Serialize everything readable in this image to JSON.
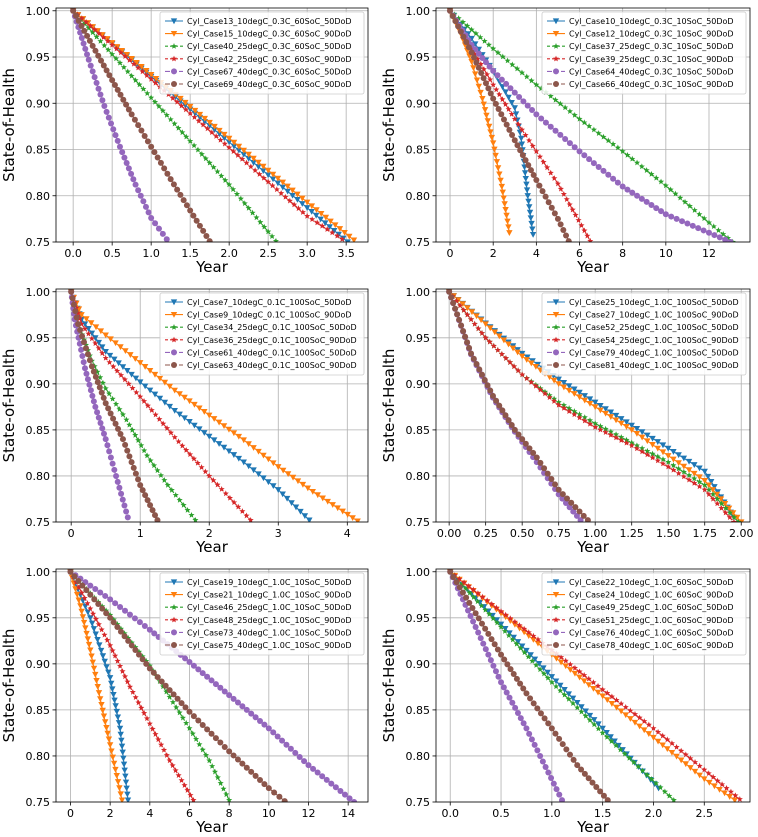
{
  "chart_data": [
    {
      "type": "line",
      "xlabel": "Year",
      "ylabel": "State-of-Health",
      "xlim": [
        -0.22,
        3.78
      ],
      "ylim": [
        0.75,
        1.003
      ],
      "xticks": [
        "0.0",
        "0.5",
        "1.0",
        "1.5",
        "2.0",
        "2.5",
        "3.0",
        "3.5"
      ],
      "yticks": [
        "0.75",
        "0.80",
        "0.85",
        "0.90",
        "0.95",
        "1.00"
      ],
      "grid": true,
      "legend_position": "top-right",
      "series": [
        {
          "name": "Cyl_Case13_10degC_0.3C_60SoC_50DoD",
          "color": "#1f77b4",
          "marker": "triangle-down",
          "x": [
            0,
            0.5,
            1.0,
            1.5,
            2.0,
            2.5,
            3.0,
            3.52
          ],
          "y": [
            1.0,
            0.9645,
            0.929,
            0.8935,
            0.858,
            0.8225,
            0.787,
            0.75
          ]
        },
        {
          "name": "Cyl_Case15_10degC_0.3C_60SoC_90DoD",
          "color": "#ff7f0e",
          "marker": "triangle-down",
          "x": [
            0,
            0.5,
            1.0,
            1.5,
            2.0,
            2.5,
            3.0,
            3.6
          ],
          "y": [
            1.0,
            0.9655,
            0.931,
            0.8965,
            0.862,
            0.8275,
            0.793,
            0.752
          ]
        },
        {
          "name": "Cyl_Case40_25degC_0.3C_60SoC_50DoD",
          "color": "#2ca02c",
          "marker": "star",
          "x": [
            0,
            0.5,
            1.0,
            1.5,
            2.0,
            2.6
          ],
          "y": [
            1.0,
            0.953,
            0.906,
            0.859,
            0.812,
            0.751
          ]
        },
        {
          "name": "Cyl_Case42_25degC_0.3C_60SoC_90DoD",
          "color": "#d62728",
          "marker": "star",
          "x": [
            0,
            0.5,
            1.0,
            1.5,
            2.0,
            2.5,
            3.0,
            3.45
          ],
          "y": [
            1.0,
            0.963,
            0.926,
            0.889,
            0.852,
            0.815,
            0.778,
            0.753
          ]
        },
        {
          "name": "Cyl_Case67_40degC_0.3C_60SoC_50DoD",
          "color": "#9467bd",
          "marker": "circle",
          "x": [
            0,
            0.2,
            0.4,
            0.6,
            0.8,
            1.0,
            1.2
          ],
          "y": [
            1.0,
            0.947,
            0.897,
            0.853,
            0.812,
            0.776,
            0.753
          ]
        },
        {
          "name": "Cyl_Case69_40degC_0.3C_60SoC_90DoD",
          "color": "#8c564b",
          "marker": "circle",
          "x": [
            0,
            0.25,
            0.5,
            0.75,
            1.0,
            1.25,
            1.5,
            1.75
          ],
          "y": [
            1.0,
            0.962,
            0.925,
            0.888,
            0.853,
            0.818,
            0.784,
            0.751
          ]
        }
      ]
    },
    {
      "type": "line",
      "xlabel": "Year",
      "ylabel": "State-of-Health",
      "xlim": [
        -0.65,
        13.9
      ],
      "ylim": [
        0.75,
        1.003
      ],
      "xticks": [
        "0",
        "2",
        "4",
        "6",
        "8",
        "10",
        "12"
      ],
      "yticks": [
        "0.75",
        "0.80",
        "0.85",
        "0.90",
        "0.95",
        "1.00"
      ],
      "grid": true,
      "legend_position": "top-right",
      "series": [
        {
          "name": "Cyl_Case10_10degC_0.3C_10SoC_50DoD",
          "color": "#1f77b4",
          "marker": "triangle-down",
          "x": [
            0,
            1,
            2,
            3,
            3.3,
            3.6,
            3.85
          ],
          "y": [
            1.0,
            0.97,
            0.935,
            0.895,
            0.862,
            0.8,
            0.758
          ]
        },
        {
          "name": "Cyl_Case12_10degC_0.3C_10SoC_90DoD",
          "color": "#ff7f0e",
          "marker": "triangle-down",
          "x": [
            0,
            0.5,
            1,
            1.5,
            2,
            2.4,
            2.75
          ],
          "y": [
            1.0,
            0.975,
            0.945,
            0.905,
            0.857,
            0.81,
            0.76
          ]
        },
        {
          "name": "Cyl_Case37_25degC_0.3C_10SoC_50DoD",
          "color": "#2ca02c",
          "marker": "star",
          "x": [
            0,
            2,
            4,
            6,
            8,
            10,
            12,
            13.1
          ],
          "y": [
            1.0,
            0.959,
            0.92,
            0.883,
            0.848,
            0.811,
            0.771,
            0.75
          ]
        },
        {
          "name": "Cyl_Case39_25degC_0.3C_10SoC_90DoD",
          "color": "#d62728",
          "marker": "star",
          "x": [
            0,
            1,
            2,
            3,
            4,
            5,
            6.5
          ],
          "y": [
            1.0,
            0.959,
            0.92,
            0.883,
            0.848,
            0.813,
            0.751
          ]
        },
        {
          "name": "Cyl_Case64_40degC_0.3C_10SoC_50DoD",
          "color": "#9467bd",
          "marker": "circle",
          "x": [
            0,
            1,
            2,
            4,
            6,
            8,
            10,
            12,
            13.0
          ],
          "y": [
            1.0,
            0.963,
            0.935,
            0.888,
            0.848,
            0.81,
            0.78,
            0.76,
            0.75
          ]
        },
        {
          "name": "Cyl_Case66_40degC_0.3C_10SoC_90DoD",
          "color": "#8c564b",
          "marker": "circle",
          "x": [
            0,
            1,
            2,
            3,
            4,
            5,
            5.5
          ],
          "y": [
            1.0,
            0.955,
            0.905,
            0.86,
            0.817,
            0.775,
            0.751
          ]
        }
      ]
    },
    {
      "type": "line",
      "xlabel": "Year",
      "ylabel": "State-of-Health",
      "xlim": [
        -0.22,
        4.3
      ],
      "ylim": [
        0.75,
        1.003
      ],
      "xticks": [
        "0",
        "1",
        "2",
        "3",
        "4"
      ],
      "yticks": [
        "0.75",
        "0.80",
        "0.85",
        "0.90",
        "0.95",
        "1.00"
      ],
      "grid": true,
      "legend_position": "top-right",
      "series": [
        {
          "name": "Cyl_Case7_10degC_0.1C_100SoC_50DoD",
          "color": "#1f77b4",
          "marker": "triangle-down",
          "x": [
            0,
            0.15,
            0.5,
            1.0,
            1.5,
            2.0,
            2.5,
            3.0,
            3.45
          ],
          "y": [
            1.0,
            0.97,
            0.935,
            0.902,
            0.871,
            0.843,
            0.815,
            0.785,
            0.752
          ]
        },
        {
          "name": "Cyl_Case9_10degC_0.1C_100SoC_90DoD",
          "color": "#ff7f0e",
          "marker": "triangle-down",
          "x": [
            0,
            0.15,
            0.5,
            1.0,
            1.5,
            2.0,
            2.5,
            3.0,
            3.5,
            4.15
          ],
          "y": [
            1.0,
            0.975,
            0.953,
            0.923,
            0.893,
            0.866,
            0.839,
            0.81,
            0.783,
            0.751
          ]
        },
        {
          "name": "Cyl_Case34_25degC_0.1C_100SoC_50DoD",
          "color": "#2ca02c",
          "marker": "star",
          "x": [
            0,
            0.1,
            0.3,
            0.5,
            0.8,
            1.1,
            1.4,
            1.8
          ],
          "y": [
            1.0,
            0.965,
            0.925,
            0.895,
            0.861,
            0.822,
            0.79,
            0.752
          ]
        },
        {
          "name": "Cyl_Case36_25degC_0.1C_100SoC_90DoD",
          "color": "#d62728",
          "marker": "star",
          "x": [
            0,
            0.15,
            0.5,
            1.0,
            1.5,
            2.0,
            2.6
          ],
          "y": [
            1.0,
            0.965,
            0.928,
            0.886,
            0.842,
            0.8,
            0.752
          ]
        },
        {
          "name": "Cyl_Case61_40degC_0.1C_100SoC_50DoD",
          "color": "#9467bd",
          "marker": "circle",
          "x": [
            0,
            0.05,
            0.2,
            0.35,
            0.5,
            0.65,
            0.82
          ],
          "y": [
            1.0,
            0.97,
            0.917,
            0.875,
            0.84,
            0.8,
            0.755
          ]
        },
        {
          "name": "Cyl_Case63_40degC_0.1C_100SoC_90DoD",
          "color": "#8c564b",
          "marker": "circle",
          "x": [
            0,
            0.1,
            0.3,
            0.5,
            0.75,
            1.0,
            1.25
          ],
          "y": [
            1.0,
            0.965,
            0.919,
            0.879,
            0.84,
            0.79,
            0.752
          ]
        }
      ]
    },
    {
      "type": "line",
      "xlabel": "Year",
      "ylabel": "State-of-Health",
      "xlim": [
        -0.09,
        2.06
      ],
      "ylim": [
        0.75,
        1.003
      ],
      "xticks": [
        "0.00",
        "0.25",
        "0.50",
        "0.75",
        "1.00",
        "1.25",
        "1.50",
        "1.75",
        "2.00"
      ],
      "yticks": [
        "0.75",
        "0.80",
        "0.85",
        "0.90",
        "0.95",
        "1.00"
      ],
      "grid": true,
      "legend_position": "top-right",
      "series": [
        {
          "name": "Cyl_Case25_10degC_1.0C_100SoC_50DoD",
          "color": "#1f77b4",
          "marker": "triangle-down",
          "x": [
            0,
            0.25,
            0.5,
            0.75,
            1.0,
            1.25,
            1.5,
            1.75,
            1.95
          ],
          "y": [
            1.0,
            0.966,
            0.933,
            0.905,
            0.88,
            0.855,
            0.83,
            0.805,
            0.755
          ]
        },
        {
          "name": "Cyl_Case27_10degC_1.0C_100SoC_90DoD",
          "color": "#ff7f0e",
          "marker": "triangle-down",
          "x": [
            0,
            0.25,
            0.5,
            0.75,
            1.0,
            1.25,
            1.5,
            1.75,
            2.0
          ],
          "y": [
            1.0,
            0.965,
            0.93,
            0.9,
            0.875,
            0.85,
            0.822,
            0.795,
            0.75
          ]
        },
        {
          "name": "Cyl_Case52_25degC_1.0C_100SoC_50DoD",
          "color": "#2ca02c",
          "marker": "star",
          "x": [
            0,
            0.25,
            0.5,
            0.75,
            1.0,
            1.25,
            1.5,
            1.75,
            1.98
          ],
          "y": [
            1.0,
            0.95,
            0.91,
            0.88,
            0.857,
            0.836,
            0.815,
            0.79,
            0.75
          ]
        },
        {
          "name": "Cyl_Case54_25degC_1.0C_100SoC_90DoD",
          "color": "#d62728",
          "marker": "star",
          "x": [
            0,
            0.25,
            0.5,
            0.75,
            1.0,
            1.25,
            1.5,
            1.75,
            1.95
          ],
          "y": [
            1.0,
            0.95,
            0.91,
            0.877,
            0.853,
            0.833,
            0.81,
            0.785,
            0.75
          ]
        },
        {
          "name": "Cyl_Case79_40degC_1.0C_100SoC_50DoD",
          "color": "#9467bd",
          "marker": "circle",
          "x": [
            0,
            0.15,
            0.3,
            0.45,
            0.6,
            0.75,
            0.9
          ],
          "y": [
            1.0,
            0.932,
            0.885,
            0.848,
            0.815,
            0.78,
            0.752
          ]
        },
        {
          "name": "Cyl_Case81_40degC_1.0C_100SoC_90DoD",
          "color": "#8c564b",
          "marker": "circle",
          "x": [
            0,
            0.15,
            0.3,
            0.45,
            0.6,
            0.75,
            0.95
          ],
          "y": [
            1.0,
            0.933,
            0.887,
            0.85,
            0.82,
            0.785,
            0.752
          ]
        }
      ]
    },
    {
      "type": "line",
      "xlabel": "Year",
      "ylabel": "State-of-Health",
      "xlim": [
        -0.73,
        15.0
      ],
      "ylim": [
        0.75,
        1.003
      ],
      "xticks": [
        "0",
        "2",
        "4",
        "6",
        "8",
        "10",
        "12",
        "14"
      ],
      "yticks": [
        "0.75",
        "0.80",
        "0.85",
        "0.90",
        "0.95",
        "1.00"
      ],
      "grid": true,
      "legend_position": "top-right",
      "series": [
        {
          "name": "Cyl_Case19_10degC_1.0C_10SoC_50DoD",
          "color": "#1f77b4",
          "marker": "triangle-down",
          "x": [
            0,
            1,
            2,
            2.5,
            2.9
          ],
          "y": [
            1.0,
            0.95,
            0.885,
            0.83,
            0.752
          ]
        },
        {
          "name": "Cyl_Case21_10degC_1.0C_10SoC_90DoD",
          "color": "#ff7f0e",
          "marker": "triangle-down",
          "x": [
            0,
            0.5,
            1,
            1.5,
            2,
            2.6
          ],
          "y": [
            1.0,
            0.963,
            0.915,
            0.862,
            0.812,
            0.752
          ]
        },
        {
          "name": "Cyl_Case46_25degC_1.0C_10SoC_50DoD",
          "color": "#2ca02c",
          "marker": "star",
          "x": [
            0,
            2,
            4,
            6,
            7,
            8
          ],
          "y": [
            1.0,
            0.953,
            0.898,
            0.83,
            0.795,
            0.752
          ]
        },
        {
          "name": "Cyl_Case48_25degC_1.0C_10SoC_90DoD",
          "color": "#d62728",
          "marker": "star",
          "x": [
            0,
            1,
            2,
            3,
            4,
            5,
            6.2
          ],
          "y": [
            1.0,
            0.96,
            0.92,
            0.875,
            0.835,
            0.795,
            0.752
          ]
        },
        {
          "name": "Cyl_Case73_40degC_1.0C_10SoC_50DoD",
          "color": "#9467bd",
          "marker": "circle",
          "x": [
            0,
            2,
            4,
            6,
            8,
            10,
            12,
            14.3
          ],
          "y": [
            1.0,
            0.97,
            0.937,
            0.902,
            0.866,
            0.83,
            0.79,
            0.75
          ]
        },
        {
          "name": "Cyl_Case75_40degC_1.0C_10SoC_90DoD",
          "color": "#8c564b",
          "marker": "circle",
          "x": [
            0,
            2,
            4,
            6,
            8,
            10,
            10.8
          ],
          "y": [
            1.0,
            0.95,
            0.895,
            0.848,
            0.805,
            0.765,
            0.751
          ]
        }
      ]
    },
    {
      "type": "line",
      "xlabel": "Year",
      "ylabel": "State-of-Health",
      "xlim": [
        -0.14,
        2.95
      ],
      "ylim": [
        0.75,
        1.003
      ],
      "xticks": [
        "0.0",
        "0.5",
        "1.0",
        "1.5",
        "2.0",
        "2.5"
      ],
      "yticks": [
        "0.75",
        "0.80",
        "0.85",
        "0.90",
        "0.95",
        "1.00"
      ],
      "grid": true,
      "legend_position": "top-right",
      "series": [
        {
          "name": "Cyl_Case22_10degC_1.0C_60SoC_50DoD",
          "color": "#1f77b4",
          "marker": "triangle-down",
          "x": [
            0,
            0.5,
            1.0,
            1.5,
            2.05
          ],
          "y": [
            1.0,
            0.943,
            0.886,
            0.83,
            0.765
          ]
        },
        {
          "name": "Cyl_Case24_10degC_1.0C_60SoC_90DoD",
          "color": "#ff7f0e",
          "marker": "triangle-down",
          "x": [
            0,
            0.5,
            1.0,
            1.5,
            2.0,
            2.5,
            2.8
          ],
          "y": [
            1.0,
            0.955,
            0.91,
            0.865,
            0.82,
            0.775,
            0.752
          ]
        },
        {
          "name": "Cyl_Case49_25degC_1.0C_60SoC_50DoD",
          "color": "#2ca02c",
          "marker": "star",
          "x": [
            0,
            0.5,
            1.0,
            1.5,
            2.2
          ],
          "y": [
            1.0,
            0.94,
            0.88,
            0.825,
            0.752
          ]
        },
        {
          "name": "Cyl_Case51_25degC_1.0C_60SoC_90DoD",
          "color": "#d62728",
          "marker": "star",
          "x": [
            0,
            0.5,
            1.0,
            1.5,
            2.0,
            2.5,
            2.85
          ],
          "y": [
            1.0,
            0.957,
            0.915,
            0.872,
            0.83,
            0.785,
            0.753
          ]
        },
        {
          "name": "Cyl_Case76_40degC_1.0C_60SoC_50DoD",
          "color": "#9467bd",
          "marker": "circle",
          "x": [
            0,
            0.25,
            0.5,
            0.75,
            1.1
          ],
          "y": [
            1.0,
            0.94,
            0.88,
            0.83,
            0.752
          ]
        },
        {
          "name": "Cyl_Case78_40degC_1.0C_60SoC_90DoD",
          "color": "#8c564b",
          "marker": "circle",
          "x": [
            0,
            0.25,
            0.5,
            0.75,
            1.0,
            1.25,
            1.55
          ],
          "y": [
            1.0,
            0.955,
            0.91,
            0.868,
            0.83,
            0.79,
            0.752
          ]
        }
      ]
    }
  ]
}
